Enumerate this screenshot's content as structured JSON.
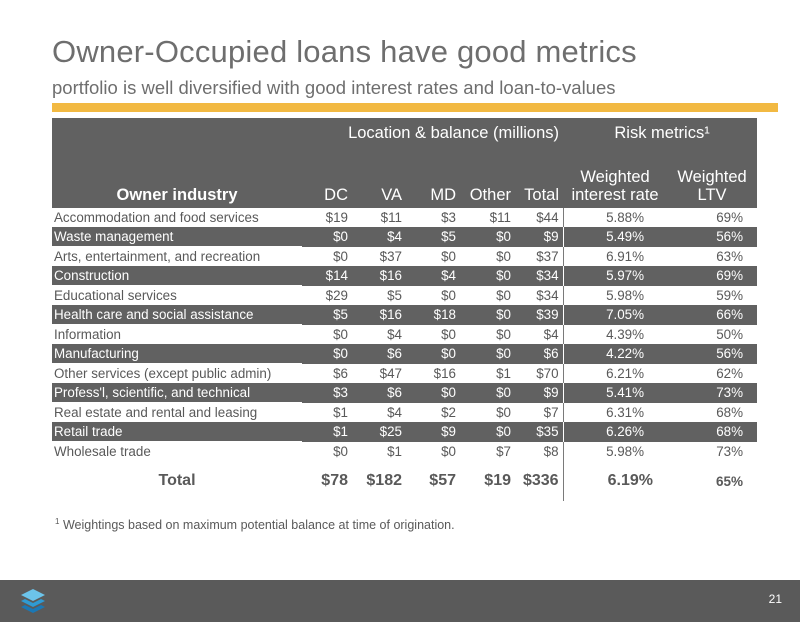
{
  "slide": {
    "title": "Owner-Occupied loans have good metrics",
    "subtitle": "portfolio is well diversified with good interest rates and loan-to-values",
    "accent_color": "#f2b942",
    "page_number": "21"
  },
  "table": {
    "group_headers": {
      "location": "Location & balance (millions)",
      "risk": "Risk metrics¹"
    },
    "columns": {
      "industry": "Owner industry",
      "dc": "DC",
      "va": "VA",
      "md": "MD",
      "other": "Other",
      "total": "Total",
      "rate": "Weighted interest rate",
      "ltv": "Weighted LTV"
    },
    "rows": [
      {
        "industry": "Accommodation and food services",
        "dc": "$19",
        "va": "$11",
        "md": "$3",
        "other": "$11",
        "total": "$44",
        "rate": "5.88%",
        "ltv": "69%"
      },
      {
        "industry": "Waste management",
        "dc": "$0",
        "va": "$4",
        "md": "$5",
        "other": "$0",
        "total": "$9",
        "rate": "5.49%",
        "ltv": "56%"
      },
      {
        "industry": "Arts, entertainment, and recreation",
        "dc": "$0",
        "va": "$37",
        "md": "$0",
        "other": "$0",
        "total": "$37",
        "rate": "6.91%",
        "ltv": "63%"
      },
      {
        "industry": "Construction",
        "dc": "$14",
        "va": "$16",
        "md": "$4",
        "other": "$0",
        "total": "$34",
        "rate": "5.97%",
        "ltv": "69%"
      },
      {
        "industry": "Educational services",
        "dc": "$29",
        "va": "$5",
        "md": "$0",
        "other": "$0",
        "total": "$34",
        "rate": "5.98%",
        "ltv": "59%"
      },
      {
        "industry": "Health care and social assistance",
        "dc": "$5",
        "va": "$16",
        "md": "$18",
        "other": "$0",
        "total": "$39",
        "rate": "7.05%",
        "ltv": "66%"
      },
      {
        "industry": "Information",
        "dc": "$0",
        "va": "$4",
        "md": "$0",
        "other": "$0",
        "total": "$4",
        "rate": "4.39%",
        "ltv": "50%"
      },
      {
        "industry": "Manufacturing",
        "dc": "$0",
        "va": "$6",
        "md": "$0",
        "other": "$0",
        "total": "$6",
        "rate": "4.22%",
        "ltv": "56%"
      },
      {
        "industry": "Other services (except public admin)",
        "dc": "$6",
        "va": "$47",
        "md": "$16",
        "other": "$1",
        "total": "$70",
        "rate": "6.21%",
        "ltv": "62%"
      },
      {
        "industry": "Profess'l, scientific, and technical",
        "dc": "$3",
        "va": "$6",
        "md": "$0",
        "other": "$0",
        "total": "$9",
        "rate": "5.41%",
        "ltv": "73%"
      },
      {
        "industry": "Real estate and rental and leasing",
        "dc": "$1",
        "va": "$4",
        "md": "$2",
        "other": "$0",
        "total": "$7",
        "rate": "6.31%",
        "ltv": "68%"
      },
      {
        "industry": "Retail trade",
        "dc": "$1",
        "va": "$25",
        "md": "$9",
        "other": "$0",
        "total": "$35",
        "rate": "6.26%",
        "ltv": "68%"
      },
      {
        "industry": "Wholesale trade",
        "dc": "$0",
        "va": "$1",
        "md": "$0",
        "other": "$7",
        "total": "$8",
        "rate": "5.98%",
        "ltv": "73%"
      }
    ],
    "total_row": {
      "industry": "Total",
      "dc": "$78",
      "va": "$182",
      "md": "$57",
      "other": "$19",
      "total": "$336",
      "rate": "6.19%",
      "ltv": "65%"
    }
  },
  "footnote": {
    "marker": "1",
    "text": "Weightings based on maximum potential balance at time of origination."
  }
}
